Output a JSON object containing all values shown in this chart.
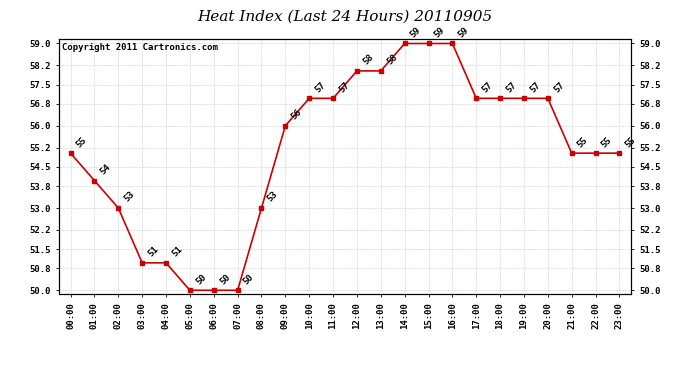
{
  "title": "Heat Index (Last 24 Hours) 20110905",
  "copyright": "Copyright 2011 Cartronics.com",
  "hours": [
    "00:00",
    "01:00",
    "02:00",
    "03:00",
    "04:00",
    "05:00",
    "06:00",
    "07:00",
    "08:00",
    "09:00",
    "10:00",
    "11:00",
    "12:00",
    "13:00",
    "14:00",
    "15:00",
    "16:00",
    "17:00",
    "18:00",
    "19:00",
    "20:00",
    "21:00",
    "22:00",
    "23:00"
  ],
  "values": [
    55,
    54,
    53,
    51,
    51,
    50,
    50,
    50,
    53,
    56,
    57,
    57,
    58,
    58,
    59,
    59,
    59,
    57,
    57,
    57,
    57,
    55,
    55,
    55
  ],
  "ylim": [
    49.85,
    59.15
  ],
  "yticks": [
    50.0,
    50.8,
    51.5,
    52.2,
    53.0,
    53.8,
    54.5,
    55.2,
    56.0,
    56.8,
    57.5,
    58.2,
    59.0
  ],
  "ytick_labels": [
    "50.0",
    "50.8",
    "51.5",
    "52.2",
    "53.0",
    "53.8",
    "54.5",
    "55.2",
    "56.0",
    "56.8",
    "57.5",
    "58.2",
    "59.0"
  ],
  "line_color": "#cc0000",
  "marker_color": "#cc0000",
  "bg_color": "#ffffff",
  "grid_color": "#cccccc",
  "title_fontsize": 11,
  "annotation_fontsize": 6.5,
  "copyright_fontsize": 6.5,
  "tick_fontsize": 6.5
}
